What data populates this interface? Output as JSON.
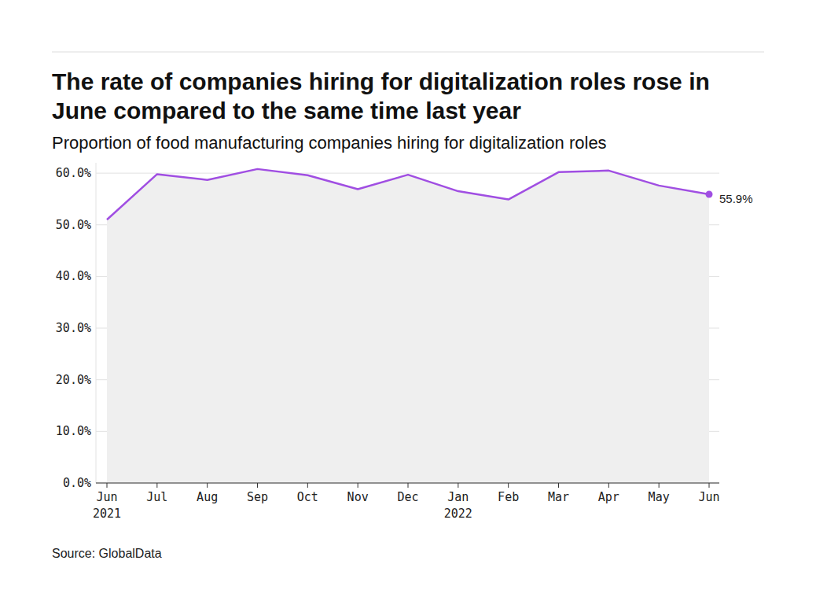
{
  "chart_data": {
    "type": "area",
    "title": "The rate of companies hiring for digitalization roles rose in June compared to the same time last year",
    "subtitle": "Proportion of food manufacturing companies hiring for digitalization roles",
    "source": "Source: GlobalData",
    "categories": [
      "Jun 2021",
      "Jul",
      "Aug",
      "Sep",
      "Oct",
      "Nov",
      "Dec",
      "Jan 2022",
      "Feb",
      "Mar",
      "Apr",
      "May",
      "Jun"
    ],
    "values": [
      51.0,
      59.8,
      58.7,
      60.8,
      59.6,
      56.9,
      59.7,
      56.5,
      54.9,
      60.2,
      60.5,
      57.6,
      55.9
    ],
    "value_labels": [
      null,
      null,
      null,
      null,
      null,
      null,
      null,
      null,
      null,
      null,
      null,
      null,
      "55.9%"
    ],
    "color": "#a04ee2",
    "ylim": [
      0,
      62
    ],
    "yticks": [
      {
        "value": 0,
        "label": "0.0%"
      },
      {
        "value": 10,
        "label": "10.0%"
      },
      {
        "value": 20,
        "label": "20.0%"
      },
      {
        "value": 30,
        "label": "30.0%"
      },
      {
        "value": 40,
        "label": "40.0%"
      },
      {
        "value": 50,
        "label": "50.0%"
      },
      {
        "value": 60,
        "label": "60.0%"
      }
    ],
    "grid": true
  }
}
